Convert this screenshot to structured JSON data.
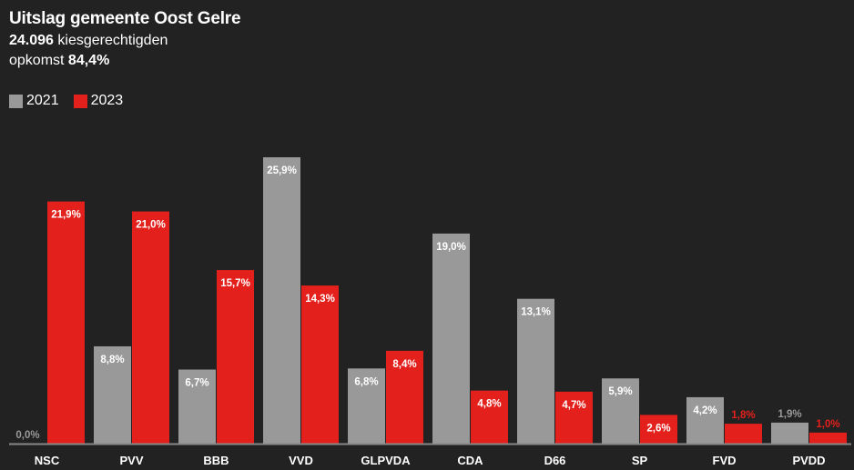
{
  "header": {
    "title": "Uitslag gemeente Oost Gelre",
    "voters_value": "24.096",
    "voters_label": "kiesgerechtigden",
    "turnout_label": "opkomst",
    "turnout_value": "84,4%"
  },
  "colors": {
    "background": "#222222",
    "series_2021": "#999999",
    "series_2023": "#e3201b",
    "baseline": "#888888"
  },
  "chart_data": {
    "type": "bar",
    "title": "Uitslag gemeente Oost Gelre",
    "categories": [
      "NSC",
      "PVV",
      "BBB",
      "VVD",
      "GLPVDA",
      "CDA",
      "D66",
      "SP",
      "FVD",
      "PVDD"
    ],
    "series": [
      {
        "name": "2021",
        "values": [
          0.0,
          8.8,
          6.7,
          25.9,
          6.8,
          19.0,
          13.1,
          5.9,
          4.2,
          1.9
        ],
        "labels": [
          "0,0%",
          "8,8%",
          "6,7%",
          "25,9%",
          "6,8%",
          "19,0%",
          "13,1%",
          "5,9%",
          "4,2%",
          "1,9%"
        ]
      },
      {
        "name": "2023",
        "values": [
          21.9,
          21.0,
          15.7,
          14.3,
          8.4,
          4.8,
          4.7,
          2.6,
          1.8,
          1.0
        ],
        "labels": [
          "21,9%",
          "21,0%",
          "15,7%",
          "14,3%",
          "8,4%",
          "4,8%",
          "4,7%",
          "2,6%",
          "1,8%",
          "1,0%"
        ]
      }
    ],
    "ylim": [
      0,
      25.9
    ],
    "grid": false,
    "legend": "top-left"
  }
}
